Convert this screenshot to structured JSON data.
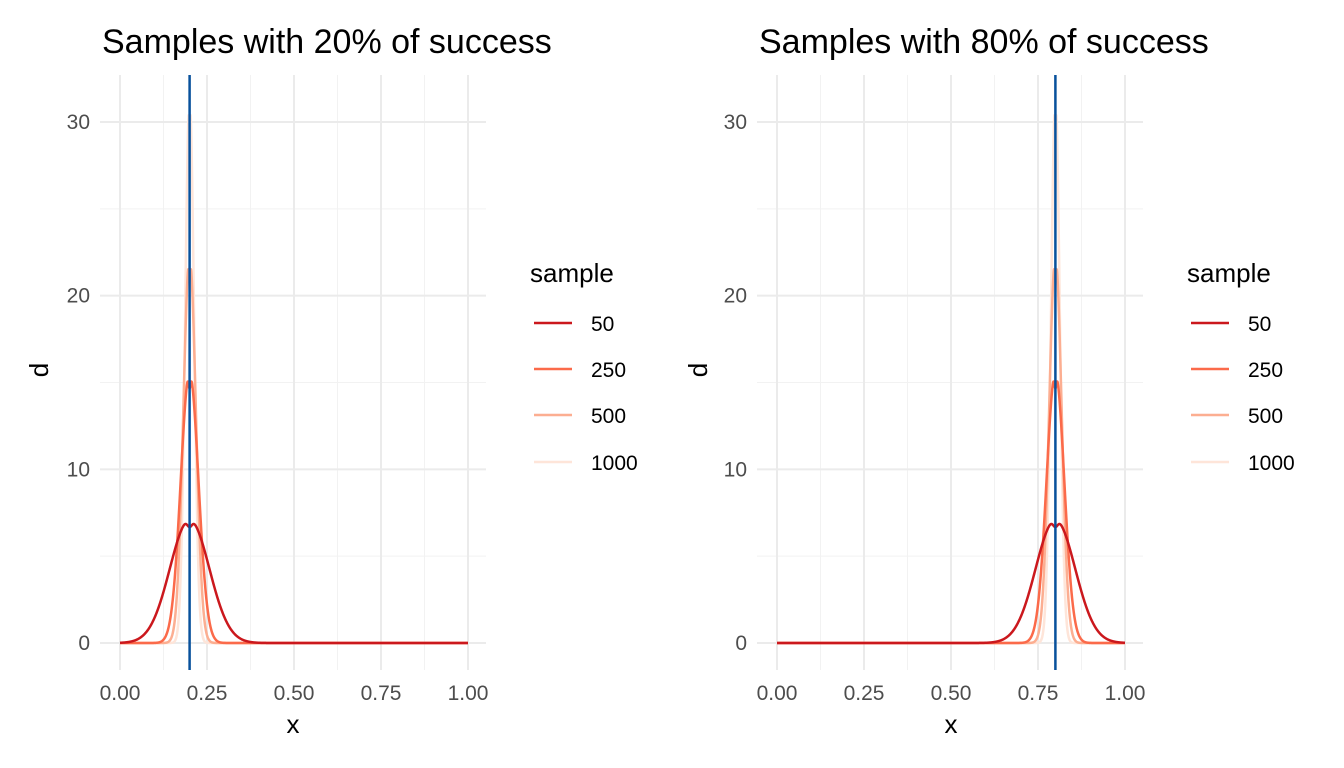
{
  "chart_data": [
    {
      "type": "line",
      "title": "Samples with 20% of success",
      "xlabel": "x",
      "ylabel": "d",
      "xlim": [
        0,
        1
      ],
      "ylim": [
        0,
        30
      ],
      "x_ticks": [
        "0.00",
        "0.25",
        "0.50",
        "0.75",
        "1.00"
      ],
      "y_ticks": [
        "0",
        "10",
        "20",
        "30"
      ],
      "grid": true,
      "legend": {
        "title": "sample",
        "placement": "right",
        "entries": [
          "50",
          "250",
          "500",
          "1000"
        ]
      },
      "vline": {
        "x": 0.2,
        "color": "#08519c"
      },
      "p": 0.2,
      "series": [
        {
          "name": "50",
          "n": 50,
          "peak": 7.1,
          "color": "#cb181d"
        },
        {
          "name": "250",
          "n": 250,
          "peak": 15.6,
          "color": "#fb6a4a"
        },
        {
          "name": "500",
          "n": 500,
          "peak": 22.3,
          "color": "#fcae91"
        },
        {
          "name": "1000",
          "n": 1000,
          "peak": 31.5,
          "color": "#fee5d9"
        }
      ]
    },
    {
      "type": "line",
      "title": "Samples with 80% of success",
      "xlabel": "x",
      "ylabel": "d",
      "xlim": [
        0,
        1
      ],
      "ylim": [
        0,
        30
      ],
      "x_ticks": [
        "0.00",
        "0.25",
        "0.50",
        "0.75",
        "1.00"
      ],
      "y_ticks": [
        "0",
        "10",
        "20",
        "30"
      ],
      "grid": true,
      "legend": {
        "title": "sample",
        "placement": "right",
        "entries": [
          "50",
          "250",
          "500",
          "1000"
        ]
      },
      "vline": {
        "x": 0.8,
        "color": "#08519c"
      },
      "p": 0.8,
      "series": [
        {
          "name": "50",
          "n": 50,
          "peak": 7.1,
          "color": "#cb181d"
        },
        {
          "name": "250",
          "n": 250,
          "peak": 15.6,
          "color": "#fb6a4a"
        },
        {
          "name": "500",
          "n": 500,
          "peak": 22.3,
          "color": "#fcae91"
        },
        {
          "name": "1000",
          "n": 1000,
          "peak": 31.5,
          "color": "#fee5d9"
        }
      ]
    }
  ]
}
